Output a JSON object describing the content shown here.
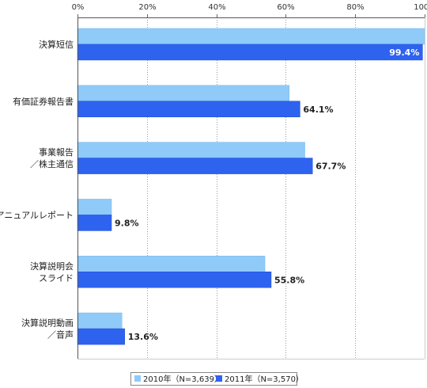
{
  "chart_data": {
    "type": "bar",
    "orientation": "horizontal",
    "categories": [
      [
        "決算短信"
      ],
      [
        "有価証券報告書"
      ],
      [
        "事業報告",
        "／株主通信"
      ],
      [
        "アニュアルレポート"
      ],
      [
        "決算説明会",
        "スライド"
      ],
      [
        "決算説明動画",
        "／音声"
      ]
    ],
    "series": [
      {
        "name": "2010年（N=3,639）",
        "color": "#8fcaf9",
        "values": [
          100.0,
          61.0,
          65.5,
          9.8,
          54.0,
          12.8
        ]
      },
      {
        "name": "2011年（N=3,570）",
        "color": "#2e63f0",
        "values": [
          99.4,
          64.1,
          67.7,
          9.8,
          55.8,
          13.6
        ]
      }
    ],
    "data_labels": [
      "99.4%",
      "64.1%",
      "67.7%",
      "9.8%",
      "55.8%",
      "13.6%"
    ],
    "xlim": [
      0,
      100
    ],
    "xticks": [
      "0%",
      "20%",
      "40%",
      "60%",
      "80%",
      "100%"
    ],
    "tick_position": "top",
    "grid": true,
    "legend_position": "bottom-center",
    "title": "",
    "xlabel": "",
    "ylabel": ""
  }
}
